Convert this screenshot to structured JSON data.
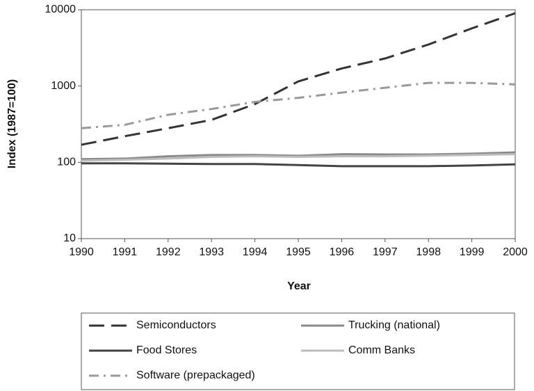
{
  "chart_data": {
    "type": "line",
    "xlabel": "Year",
    "ylabel": "Index (1987=100)",
    "x": [
      1990,
      1991,
      1992,
      1993,
      1994,
      1995,
      1996,
      1997,
      1998,
      1999,
      2000
    ],
    "xlim": [
      1990,
      2000
    ],
    "xticks": [
      1990,
      1991,
      1992,
      1993,
      1994,
      1995,
      1996,
      1997,
      1998,
      1999,
      2000
    ],
    "ylim": [
      10,
      10000
    ],
    "yticks": [
      10,
      100,
      1000,
      10000
    ],
    "log_y": true,
    "grid": false,
    "legend": "bottom",
    "series": [
      {
        "name": "Semiconductors",
        "color": "#333333",
        "dash": "long-dash",
        "values": [
          170,
          220,
          280,
          360,
          580,
          1150,
          1700,
          2300,
          3500,
          5700,
          9000
        ]
      },
      {
        "name": "Trucking (national)",
        "color": "#8a8a8a",
        "dash": "solid",
        "values": [
          110,
          112,
          120,
          125,
          125,
          122,
          128,
          127,
          127,
          130,
          135
        ]
      },
      {
        "name": "Food Stores",
        "color": "#444444",
        "dash": "solid",
        "values": [
          97,
          97,
          96,
          95,
          95,
          92,
          89,
          89,
          89,
          91,
          94
        ]
      },
      {
        "name": "Comm Banks",
        "color": "#bdbdbd",
        "dash": "solid",
        "values": [
          105,
          108,
          112,
          118,
          120,
          118,
          120,
          120,
          122,
          125,
          128
        ]
      },
      {
        "name": "Software (prepackaged)",
        "color": "#9a9a9a",
        "dash": "dash-dot",
        "values": [
          280,
          310,
          420,
          500,
          620,
          700,
          820,
          950,
          1100,
          1100,
          1050
        ]
      }
    ]
  }
}
